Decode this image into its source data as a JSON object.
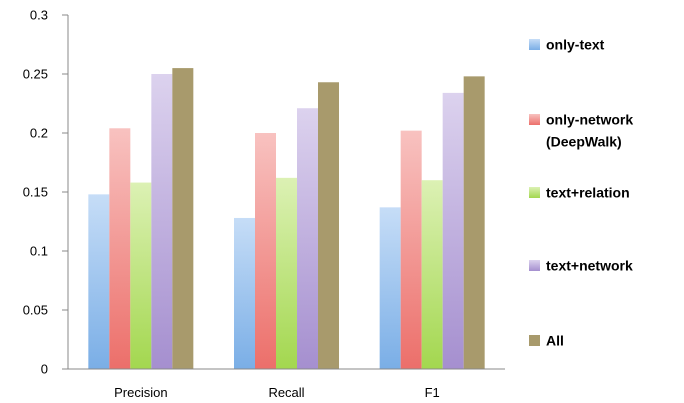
{
  "chart_data": {
    "type": "bar",
    "categories": [
      "Precision",
      "Recall",
      "F1"
    ],
    "series": [
      {
        "name": "only-text",
        "values": [
          0.148,
          0.128,
          0.137
        ],
        "color": "#7aaee6",
        "color_light": "#c6ddf7"
      },
      {
        "name": "only-network (DeepWalk)",
        "name_lines": [
          "only-network",
          "(DeepWalk)"
        ],
        "values": [
          0.204,
          0.2,
          0.202
        ],
        "color": "#ec6f6a",
        "color_light": "#f8c2c0"
      },
      {
        "name": "text+relation",
        "values": [
          0.158,
          0.162,
          0.16
        ],
        "color": "#a3d74f",
        "color_light": "#dcf1b4"
      },
      {
        "name": "text+network",
        "values": [
          0.25,
          0.221,
          0.234
        ],
        "color": "#a58fcf",
        "color_light": "#dcd2ee"
      },
      {
        "name": "All",
        "values": [
          0.255,
          0.243,
          0.248
        ],
        "color": "#a89a6c",
        "color_light": "#a89a6c"
      }
    ],
    "ylim": [
      0,
      0.3
    ],
    "yticks": [
      "0",
      "0.05",
      "0.1",
      "0.15",
      "0.2",
      "0.25",
      "0.3"
    ],
    "ytick_values": [
      0,
      0.05,
      0.1,
      0.15,
      0.2,
      0.25,
      0.3
    ],
    "grid": false,
    "legend_position": "right",
    "xlabel": "",
    "ylabel": "",
    "title": ""
  }
}
